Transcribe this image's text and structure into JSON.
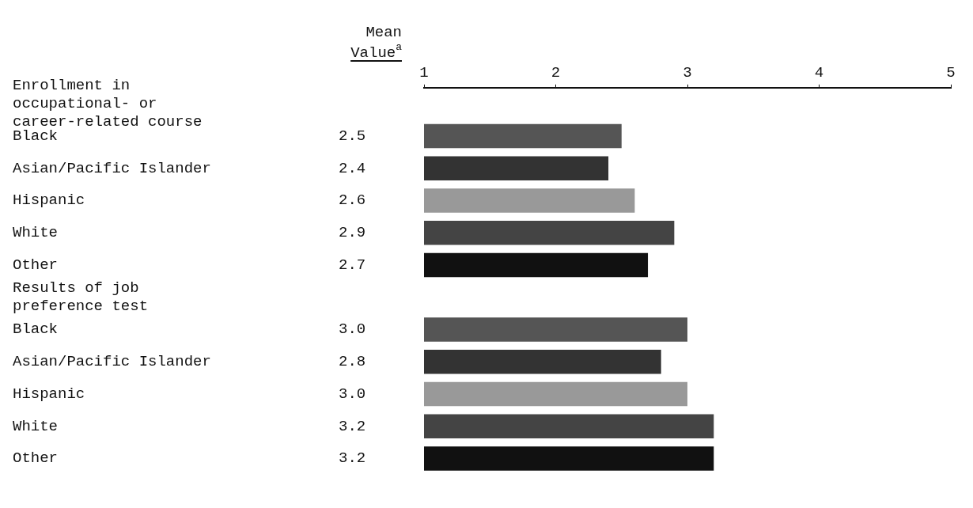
{
  "chart_data": {
    "type": "bar",
    "orientation": "horizontal",
    "categories": [
      "Enrollment in occupational- or career-related course",
      "Black",
      "Asian/Pacific Islander",
      "Hispanic",
      "White",
      "Other",
      "Results of job preference test",
      "Black",
      "Asian/Pacific Islander",
      "Hispanic",
      "White",
      "Other"
    ],
    "series": [
      {
        "values": [
          null,
          2.5,
          2.4,
          2.6,
          2.9,
          2.7,
          null,
          3.0,
          2.8,
          3.0,
          3.2,
          3.2
        ],
        "colors": [
          "#000000",
          "#555555",
          "#333333",
          "#999999",
          "#444444",
          "#111111",
          "#000000",
          "#555555",
          "#333333",
          "#999999",
          "#444444",
          "#111111"
        ],
        "value_labels": [
          null,
          "2.5",
          "2.4",
          "2.6",
          "2.9",
          "2.7",
          null,
          "3.0",
          "2.8",
          "3.0",
          "3.2",
          "3.2"
        ]
      }
    ],
    "x2lim": [
      1,
      5
    ],
    "x2ticks": [
      1,
      2,
      3,
      4,
      5
    ],
    "grid": false,
    "legend": false,
    "annotations": [
      "Mean Value$^{a}$"
    ]
  }
}
